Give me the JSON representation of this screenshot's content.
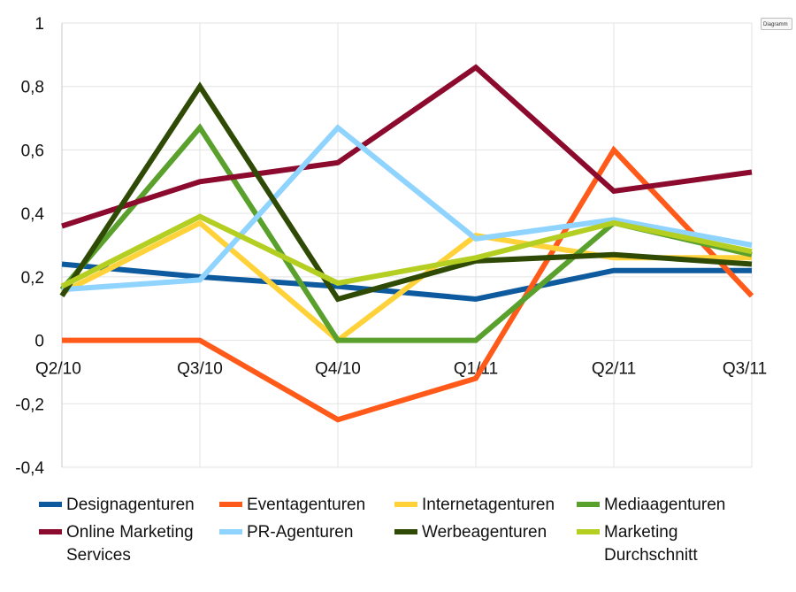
{
  "corner_badge": {
    "label": "Diagramm"
  },
  "chart_data": {
    "type": "line",
    "categories": [
      "Q2/10",
      "Q3/10",
      "Q4/10",
      "Q1/11",
      "Q2/11",
      "Q3/11"
    ],
    "ylim": [
      -0.4,
      1
    ],
    "y_ticks": [
      1,
      0.8,
      0.6,
      0.4,
      0.2,
      0,
      -0.2,
      -0.4
    ],
    "y_tick_labels": [
      "1",
      "0,8",
      "0,6",
      "0,4",
      "0,2",
      "0",
      "-0,2",
      "-0,4"
    ],
    "grid": true,
    "legend_position": "bottom",
    "series": [
      {
        "name": "Designagenturen",
        "color": "#0d5a9e",
        "values": [
          0.24,
          0.2,
          0.17,
          0.13,
          0.22,
          0.22
        ]
      },
      {
        "name": "Eventagenturen",
        "color": "#ff5a1a",
        "values": [
          0.0,
          0.0,
          -0.25,
          -0.12,
          0.6,
          0.14
        ]
      },
      {
        "name": "Internetagenturen",
        "color": "#ffd23a",
        "values": [
          0.15,
          0.37,
          0.0,
          0.33,
          0.26,
          0.26
        ]
      },
      {
        "name": "Mediaagenturen",
        "color": "#5aa02c",
        "values": [
          0.16,
          0.67,
          0.0,
          0.0,
          0.37,
          0.27
        ]
      },
      {
        "name": "Online Marketing Services",
        "color": "#8b0a2e",
        "values": [
          0.36,
          0.5,
          0.56,
          0.86,
          0.47,
          0.53
        ]
      },
      {
        "name": "PR-Agenturen",
        "color": "#8fd3ff",
        "values": [
          0.16,
          0.19,
          0.67,
          0.32,
          0.38,
          0.3
        ]
      },
      {
        "name": "Werbeagenturen",
        "color": "#2f4a05",
        "values": [
          0.14,
          0.8,
          0.13,
          0.25,
          0.27,
          0.24
        ]
      },
      {
        "name": "Marketing Durchschnitt",
        "color": "#b4cf22",
        "values": [
          0.17,
          0.39,
          0.18,
          0.26,
          0.37,
          0.28
        ]
      }
    ],
    "legend_rows": [
      [
        "Designagenturen",
        "Eventagenturen",
        "Internetagenturen",
        "Mediaagenturen"
      ],
      [
        "Online Marketing|Services",
        "PR-Agenturen",
        "Werbeagenturen",
        "Marketing|Durchschnitt"
      ]
    ]
  }
}
